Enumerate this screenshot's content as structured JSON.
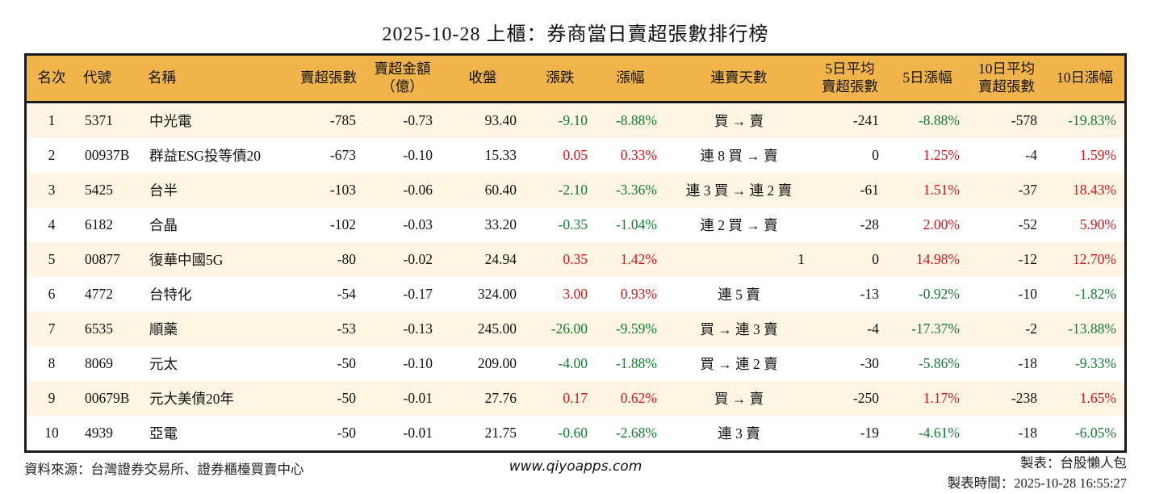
{
  "title": "2025-10-28 上櫃：券商當日賣超張數排行榜",
  "colors": {
    "header_bg": "#F0B44B",
    "row_stripe_bg": "#FDF5E2",
    "up_red": "#D91418",
    "down_green": "#0F7D32",
    "table_border": "#1a1a1a"
  },
  "table": {
    "columns": [
      {
        "key": "rank",
        "label": "名次",
        "align": "center"
      },
      {
        "key": "code",
        "label": "代號",
        "align": "left"
      },
      {
        "key": "name",
        "label": "名稱",
        "align": "left"
      },
      {
        "key": "sell_volume",
        "label": "賣超張數",
        "align": "right"
      },
      {
        "key": "sell_amount",
        "label": "賣超金額\n（億）",
        "align": "right"
      },
      {
        "key": "close",
        "label": "收盤",
        "align": "right"
      },
      {
        "key": "change",
        "label": "漲跌",
        "align": "right"
      },
      {
        "key": "change_pct",
        "label": "漲幅",
        "align": "right"
      },
      {
        "key": "sell_streak",
        "label": "連賣天數",
        "align": "center"
      },
      {
        "key": "avg5",
        "label": "5日平均\n賣超張數",
        "align": "right"
      },
      {
        "key": "pct5",
        "label": "5日漲幅",
        "align": "right"
      },
      {
        "key": "avg10",
        "label": "10日平均\n賣超張數",
        "align": "right"
      },
      {
        "key": "pct10",
        "label": "10日漲幅",
        "align": "right"
      }
    ],
    "rows": [
      {
        "cells": [
          {
            "v": "1"
          },
          {
            "v": "5371"
          },
          {
            "v": "中光電"
          },
          {
            "v": "-785"
          },
          {
            "v": "-0.73"
          },
          {
            "v": "93.40"
          },
          {
            "v": "-9.10",
            "c": "down"
          },
          {
            "v": "-8.88%",
            "c": "down"
          },
          {
            "v": "買 → 賣"
          },
          {
            "v": "-241"
          },
          {
            "v": "-8.88%",
            "c": "down"
          },
          {
            "v": "-578"
          },
          {
            "v": "-19.83%",
            "c": "down"
          }
        ]
      },
      {
        "cells": [
          {
            "v": "2"
          },
          {
            "v": "00937B"
          },
          {
            "v": "群益ESG投等債20"
          },
          {
            "v": "-673"
          },
          {
            "v": "-0.10"
          },
          {
            "v": "15.33"
          },
          {
            "v": "0.05",
            "c": "up"
          },
          {
            "v": "0.33%",
            "c": "up"
          },
          {
            "v": "連 8 買 → 賣"
          },
          {
            "v": "0"
          },
          {
            "v": "1.25%",
            "c": "up"
          },
          {
            "v": "-4"
          },
          {
            "v": "1.59%",
            "c": "up"
          }
        ]
      },
      {
        "cells": [
          {
            "v": "3"
          },
          {
            "v": "5425"
          },
          {
            "v": "台半"
          },
          {
            "v": "-103"
          },
          {
            "v": "-0.06"
          },
          {
            "v": "60.40"
          },
          {
            "v": "-2.10",
            "c": "down"
          },
          {
            "v": "-3.36%",
            "c": "down"
          },
          {
            "v": "連 3 買 → 連 2 賣"
          },
          {
            "v": "-61"
          },
          {
            "v": "1.51%",
            "c": "up"
          },
          {
            "v": "-37"
          },
          {
            "v": "18.43%",
            "c": "up"
          }
        ]
      },
      {
        "cells": [
          {
            "v": "4"
          },
          {
            "v": "6182"
          },
          {
            "v": "合晶"
          },
          {
            "v": "-102"
          },
          {
            "v": "-0.03"
          },
          {
            "v": "33.20"
          },
          {
            "v": "-0.35",
            "c": "down"
          },
          {
            "v": "-1.04%",
            "c": "down"
          },
          {
            "v": "連 2 買 → 賣"
          },
          {
            "v": "-28"
          },
          {
            "v": "2.00%",
            "c": "up"
          },
          {
            "v": "-52"
          },
          {
            "v": "5.90%",
            "c": "up"
          }
        ]
      },
      {
        "cells": [
          {
            "v": "5"
          },
          {
            "v": "00877"
          },
          {
            "v": "復華中國5G"
          },
          {
            "v": "-80"
          },
          {
            "v": "-0.02"
          },
          {
            "v": "24.94"
          },
          {
            "v": "0.35",
            "c": "up"
          },
          {
            "v": "1.42%",
            "c": "up"
          },
          {
            "v": "1",
            "a": "right"
          },
          {
            "v": "0"
          },
          {
            "v": "14.98%",
            "c": "up"
          },
          {
            "v": "-12"
          },
          {
            "v": "12.70%",
            "c": "up"
          }
        ]
      },
      {
        "cells": [
          {
            "v": "6"
          },
          {
            "v": "4772"
          },
          {
            "v": "台特化"
          },
          {
            "v": "-54"
          },
          {
            "v": "-0.17"
          },
          {
            "v": "324.00"
          },
          {
            "v": "3.00",
            "c": "up"
          },
          {
            "v": "0.93%",
            "c": "up"
          },
          {
            "v": "連 5 賣"
          },
          {
            "v": "-13"
          },
          {
            "v": "-0.92%",
            "c": "down"
          },
          {
            "v": "-10"
          },
          {
            "v": "-1.82%",
            "c": "down"
          }
        ]
      },
      {
        "cells": [
          {
            "v": "7"
          },
          {
            "v": "6535"
          },
          {
            "v": "順藥"
          },
          {
            "v": "-53"
          },
          {
            "v": "-0.13"
          },
          {
            "v": "245.00"
          },
          {
            "v": "-26.00",
            "c": "down"
          },
          {
            "v": "-9.59%",
            "c": "down"
          },
          {
            "v": "買 → 連 3 賣"
          },
          {
            "v": "-4"
          },
          {
            "v": "-17.37%",
            "c": "down"
          },
          {
            "v": "-2"
          },
          {
            "v": "-13.88%",
            "c": "down"
          }
        ]
      },
      {
        "cells": [
          {
            "v": "8"
          },
          {
            "v": "8069"
          },
          {
            "v": "元太"
          },
          {
            "v": "-50"
          },
          {
            "v": "-0.10"
          },
          {
            "v": "209.00"
          },
          {
            "v": "-4.00",
            "c": "down"
          },
          {
            "v": "-1.88%",
            "c": "down"
          },
          {
            "v": "買 → 連 2 賣"
          },
          {
            "v": "-30"
          },
          {
            "v": "-5.86%",
            "c": "down"
          },
          {
            "v": "-18"
          },
          {
            "v": "-9.33%",
            "c": "down"
          }
        ]
      },
      {
        "cells": [
          {
            "v": "9"
          },
          {
            "v": "00679B"
          },
          {
            "v": "元大美債20年"
          },
          {
            "v": "-50"
          },
          {
            "v": "-0.01"
          },
          {
            "v": "27.76"
          },
          {
            "v": "0.17",
            "c": "up"
          },
          {
            "v": "0.62%",
            "c": "up"
          },
          {
            "v": "買 → 賣"
          },
          {
            "v": "-250"
          },
          {
            "v": "1.17%",
            "c": "up"
          },
          {
            "v": "-238"
          },
          {
            "v": "1.65%",
            "c": "up"
          }
        ]
      },
      {
        "cells": [
          {
            "v": "10"
          },
          {
            "v": "4939"
          },
          {
            "v": "亞電"
          },
          {
            "v": "-50"
          },
          {
            "v": "-0.01"
          },
          {
            "v": "21.75"
          },
          {
            "v": "-0.60",
            "c": "down"
          },
          {
            "v": "-2.68%",
            "c": "down"
          },
          {
            "v": "連 3 賣"
          },
          {
            "v": "-19"
          },
          {
            "v": "-4.61%",
            "c": "down"
          },
          {
            "v": "-18"
          },
          {
            "v": "-6.05%",
            "c": "down"
          }
        ]
      }
    ]
  },
  "footer": {
    "source": "資料來源：台灣證券交易所、證券櫃檯買賣中心",
    "site": "www.qiyoapps.com",
    "maker": "製表：台股懶人包",
    "made_at": "製表時間：2025-10-28 16:55:27"
  }
}
